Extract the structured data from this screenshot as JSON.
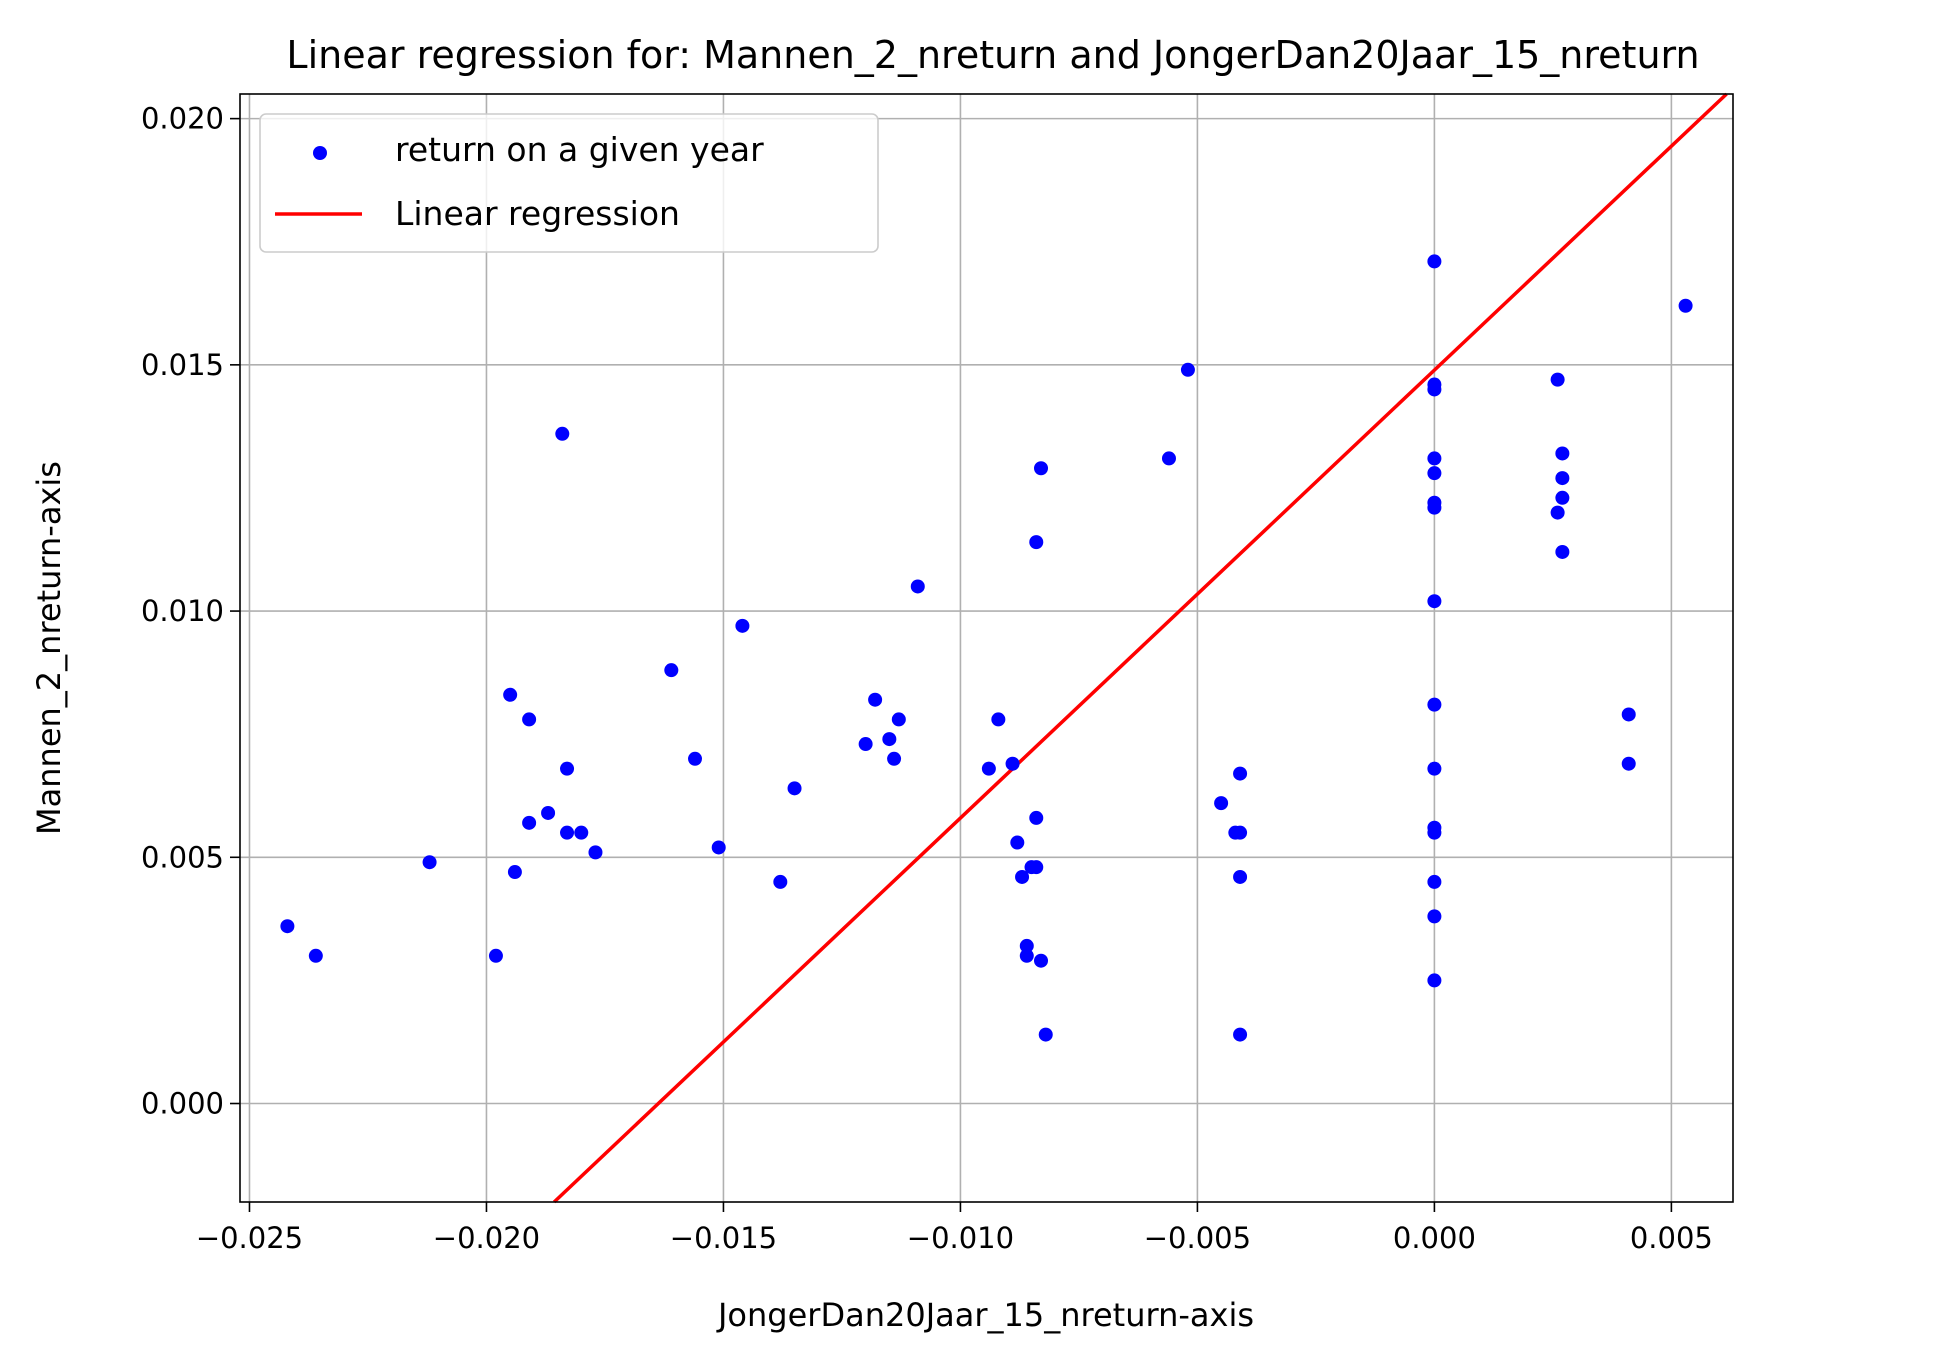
{
  "chart_data": {
    "type": "scatter",
    "title": "Linear regression for: Mannen_2_nreturn and JongerDan20Jaar_15_nreturn",
    "xlabel": "JongerDan20Jaar_15_nreturn-axis",
    "ylabel": "Mannen_2_nreturn-axis",
    "xlim": [
      -0.0252,
      0.0063
    ],
    "ylim": [
      -0.002,
      0.0205
    ],
    "xticks": [
      -0.025,
      -0.02,
      -0.015,
      -0.01,
      -0.005,
      0.0,
      0.005
    ],
    "xtick_labels": [
      "−0.025",
      "−0.020",
      "−0.015",
      "−0.010",
      "−0.005",
      "0.000",
      "0.005"
    ],
    "yticks": [
      0.0,
      0.005,
      0.01,
      0.015,
      0.02
    ],
    "ytick_labels": [
      "0.000",
      "0.005",
      "0.010",
      "0.015",
      "0.020"
    ],
    "grid": true,
    "legend_position": "upper-left",
    "series": [
      {
        "name": "return on a given year",
        "kind": "scatter",
        "color": "#0000ff",
        "points": [
          [
            -0.0242,
            0.0036
          ],
          [
            -0.0236,
            0.003
          ],
          [
            -0.0212,
            0.0049
          ],
          [
            -0.0198,
            0.003
          ],
          [
            -0.0195,
            0.0083
          ],
          [
            -0.0194,
            0.0047
          ],
          [
            -0.0191,
            0.0078
          ],
          [
            -0.0191,
            0.0057
          ],
          [
            -0.0187,
            0.0059
          ],
          [
            -0.0184,
            0.0136
          ],
          [
            -0.0183,
            0.0068
          ],
          [
            -0.0183,
            0.0055
          ],
          [
            -0.018,
            0.0055
          ],
          [
            -0.0177,
            0.0051
          ],
          [
            -0.0161,
            0.0088
          ],
          [
            -0.0156,
            0.007
          ],
          [
            -0.0151,
            0.0052
          ],
          [
            -0.0146,
            0.0097
          ],
          [
            -0.0138,
            0.0045
          ],
          [
            -0.0135,
            0.0064
          ],
          [
            -0.012,
            0.0073
          ],
          [
            -0.0118,
            0.0082
          ],
          [
            -0.0115,
            0.0074
          ],
          [
            -0.0114,
            0.007
          ],
          [
            -0.0113,
            0.0078
          ],
          [
            -0.0109,
            0.0105
          ],
          [
            -0.0094,
            0.0068
          ],
          [
            -0.0092,
            0.0078
          ],
          [
            -0.0089,
            0.0069
          ],
          [
            -0.0088,
            0.0053
          ],
          [
            -0.0087,
            0.0046
          ],
          [
            -0.0086,
            0.0032
          ],
          [
            -0.0086,
            0.003
          ],
          [
            -0.0085,
            0.0048
          ],
          [
            -0.0084,
            0.0048
          ],
          [
            -0.0084,
            0.0114
          ],
          [
            -0.0084,
            0.0058
          ],
          [
            -0.0083,
            0.0129
          ],
          [
            -0.0083,
            0.0029
          ],
          [
            -0.0082,
            0.0014
          ],
          [
            -0.0056,
            0.0131
          ],
          [
            -0.0052,
            0.0149
          ],
          [
            -0.0045,
            0.0061
          ],
          [
            -0.0042,
            0.0055
          ],
          [
            -0.0041,
            0.0055
          ],
          [
            -0.0041,
            0.0067
          ],
          [
            -0.0041,
            0.0046
          ],
          [
            -0.0041,
            0.0014
          ],
          [
            0.0,
            0.0171
          ],
          [
            0.0,
            0.0146
          ],
          [
            0.0,
            0.0145
          ],
          [
            0.0,
            0.0131
          ],
          [
            0.0,
            0.0128
          ],
          [
            0.0,
            0.0122
          ],
          [
            0.0,
            0.0121
          ],
          [
            0.0,
            0.0102
          ],
          [
            0.0,
            0.0081
          ],
          [
            0.0,
            0.0068
          ],
          [
            0.0,
            0.0056
          ],
          [
            0.0,
            0.0055
          ],
          [
            0.0,
            0.0045
          ],
          [
            0.0,
            0.0038
          ],
          [
            0.0,
            0.0025
          ],
          [
            0.0026,
            0.0147
          ],
          [
            0.0027,
            0.0132
          ],
          [
            0.0027,
            0.0127
          ],
          [
            0.0027,
            0.0123
          ],
          [
            0.0026,
            0.012
          ],
          [
            0.0027,
            0.0112
          ],
          [
            0.0041,
            0.0079
          ],
          [
            0.0041,
            0.0069
          ],
          [
            0.0053,
            0.0162
          ]
        ]
      },
      {
        "name": "Linear regression",
        "kind": "line",
        "color": "#ff0000",
        "slope": 0.9096,
        "intercept": 0.014893
      }
    ]
  }
}
